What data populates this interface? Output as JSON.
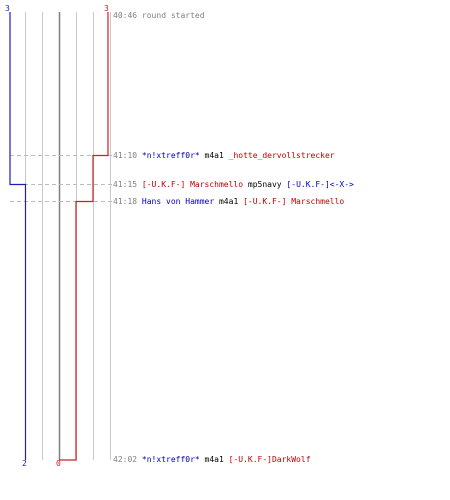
{
  "colors": {
    "blue": "#1f1fb8",
    "red": "#cc2020",
    "gray_text": "#808080",
    "grid": "#c8c8c8",
    "axis": "#808080",
    "dash": "#bbbbbb"
  },
  "chart": {
    "start_counts": {
      "blue": "3",
      "red": "3"
    },
    "end_counts": {
      "blue": "2",
      "red": "0"
    }
  },
  "log": [
    {
      "time": "40:46",
      "parts": [
        {
          "text": "round started",
          "color": "gray"
        }
      ]
    },
    {
      "time": "41:10",
      "parts": [
        {
          "text": "*n!xtreff0r*",
          "color": "blue"
        },
        {
          "text": " m4a1 ",
          "color": "black"
        },
        {
          "text": "_hotte_dervollstrecker",
          "color": "red"
        }
      ]
    },
    {
      "time": "41:15",
      "parts": [
        {
          "text": "[-U.K.F-] Marschmello",
          "color": "red"
        },
        {
          "text": " mp5navy ",
          "color": "black"
        },
        {
          "text": "[-U.K.F-]<-X->",
          "color": "blue"
        }
      ]
    },
    {
      "time": "41:18",
      "parts": [
        {
          "text": "Hans von Hammer",
          "color": "blue"
        },
        {
          "text": " m4a1 ",
          "color": "black"
        },
        {
          "text": "[-U.K.F-] Marschmello",
          "color": "red"
        }
      ]
    },
    {
      "time": "42:02",
      "parts": [
        {
          "text": "*n!xtreff0r*",
          "color": "blue"
        },
        {
          "text": " m4a1 ",
          "color": "black"
        },
        {
          "text": "[-U.K.F-]DarkWolf",
          "color": "red"
        }
      ]
    }
  ]
}
